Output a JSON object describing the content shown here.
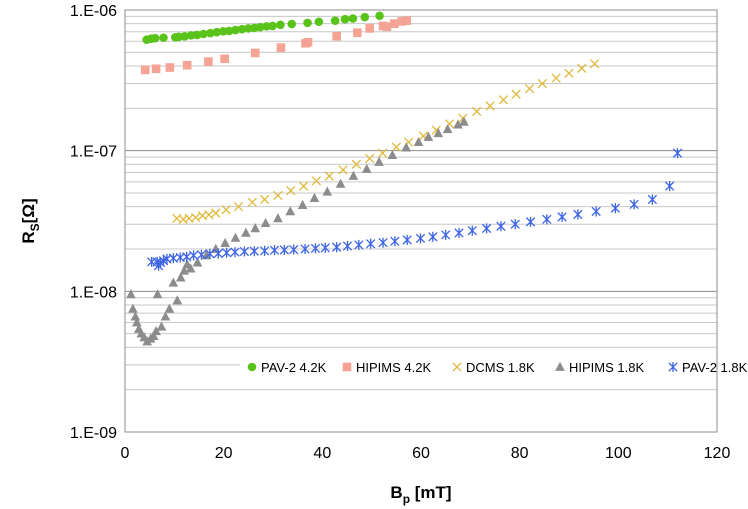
{
  "chart_data": {
    "type": "scatter",
    "xlabel": {
      "main": "B",
      "sub": "p",
      "unit": " [mT]"
    },
    "ylabel": {
      "main": "R",
      "sub": "S",
      "unit": "[Ω]"
    },
    "xlim": [
      0,
      120
    ],
    "ylim": [
      1e-09,
      1e-06
    ],
    "y_scale": "log",
    "x_ticks": [
      "0",
      "20",
      "40",
      "60",
      "80",
      "100",
      "120"
    ],
    "y_ticks": [
      "1.E-09",
      "1.E-08",
      "1.E-07",
      "1.E-06"
    ],
    "grid": "horizontal minor + major",
    "legend_position": "bottom-right",
    "series": [
      {
        "name": "PAV-2 4.2K",
        "marker": "circle",
        "color": "#5ac31a",
        "points": [
          [
            4.4,
            6.15e-07
          ],
          [
            5.3,
            6.25e-07
          ],
          [
            6.1,
            6.3e-07
          ],
          [
            7.8,
            6.35e-07
          ],
          [
            10.2,
            6.4e-07
          ],
          [
            10.9,
            6.45e-07
          ],
          [
            12.1,
            6.5e-07
          ],
          [
            13.4,
            6.6e-07
          ],
          [
            14.6,
            6.65e-07
          ],
          [
            15.9,
            6.75e-07
          ],
          [
            17.3,
            6.85e-07
          ],
          [
            18.6,
            6.95e-07
          ],
          [
            19.9,
            7.05e-07
          ],
          [
            21.1,
            7.1e-07
          ],
          [
            22.4,
            7.2e-07
          ],
          [
            23.7,
            7.3e-07
          ],
          [
            25.0,
            7.4e-07
          ],
          [
            26.2,
            7.45e-07
          ],
          [
            27.4,
            7.55e-07
          ],
          [
            28.7,
            7.65e-07
          ],
          [
            29.9,
            7.7e-07
          ],
          [
            31.5,
            7.85e-07
          ],
          [
            33.8,
            7.95e-07
          ],
          [
            37.0,
            8.1e-07
          ],
          [
            39.3,
            8.25e-07
          ],
          [
            42.6,
            8.4e-07
          ],
          [
            44.6,
            8.6e-07
          ],
          [
            46.2,
            8.7e-07
          ],
          [
            48.6,
            8.9e-07
          ],
          [
            51.6,
            9.1e-07
          ]
        ]
      },
      {
        "name": "HIPIMS 4.2K",
        "marker": "square",
        "color": "#f4a394",
        "points": [
          [
            4.1,
            3.75e-07
          ],
          [
            6.3,
            3.82e-07
          ],
          [
            9.1,
            3.9e-07
          ],
          [
            12.6,
            4.05e-07
          ],
          [
            16.9,
            4.3e-07
          ],
          [
            20.2,
            4.5e-07
          ],
          [
            26.4,
            4.95e-07
          ],
          [
            31.6,
            5.4e-07
          ],
          [
            36.6,
            5.8e-07
          ],
          [
            37.1,
            5.9e-07
          ],
          [
            42.9,
            6.5e-07
          ],
          [
            47.1,
            6.9e-07
          ],
          [
            49.6,
            7.4e-07
          ],
          [
            52.3,
            7.7e-07
          ],
          [
            53.1,
            7.6e-07
          ],
          [
            54.6,
            8e-07
          ],
          [
            56.1,
            8.3e-07
          ],
          [
            57.1,
            8.4e-07
          ]
        ]
      },
      {
        "name": "DCMS 1.8K",
        "marker": "x",
        "color": "#e0b93a",
        "points": [
          [
            10.5,
            3.3e-08
          ],
          [
            11.8,
            3.25e-08
          ],
          [
            13.0,
            3.3e-08
          ],
          [
            14.3,
            3.35e-08
          ],
          [
            15.7,
            3.45e-08
          ],
          [
            17.0,
            3.5e-08
          ],
          [
            18.4,
            3.6e-08
          ],
          [
            20.5,
            3.8e-08
          ],
          [
            23.0,
            4e-08
          ],
          [
            25.8,
            4.3e-08
          ],
          [
            28.3,
            4.5e-08
          ],
          [
            31.0,
            4.8e-08
          ],
          [
            33.6,
            5.2e-08
          ],
          [
            36.2,
            5.6e-08
          ],
          [
            38.8,
            6.1e-08
          ],
          [
            41.4,
            6.6e-08
          ],
          [
            44.2,
            7.3e-08
          ],
          [
            46.9,
            8e-08
          ],
          [
            49.6,
            8.8e-08
          ],
          [
            52.2,
            9.6e-08
          ],
          [
            55.0,
            1.06e-07
          ],
          [
            57.5,
            1.15e-07
          ],
          [
            60.5,
            1.27e-07
          ],
          [
            63.1,
            1.4e-07
          ],
          [
            65.8,
            1.55e-07
          ],
          [
            68.5,
            1.7e-07
          ],
          [
            71.3,
            1.9e-07
          ],
          [
            74.0,
            2.08e-07
          ],
          [
            76.7,
            2.3e-07
          ],
          [
            79.3,
            2.52e-07
          ],
          [
            82.0,
            2.76e-07
          ],
          [
            84.6,
            3e-07
          ],
          [
            87.4,
            3.28e-07
          ],
          [
            90.0,
            3.55e-07
          ],
          [
            92.6,
            3.85e-07
          ],
          [
            95.2,
            4.15e-07
          ]
        ]
      },
      {
        "name": "HIPIMS 1.8K",
        "marker": "triangle",
        "color": "#8c8c8c",
        "points": [
          [
            1.2,
            9.5e-09
          ],
          [
            1.6,
            7.5e-09
          ],
          [
            2.1,
            6.6e-09
          ],
          [
            2.4,
            6e-09
          ],
          [
            2.8,
            5.4e-09
          ],
          [
            3.3,
            5e-09
          ],
          [
            3.9,
            4.7e-09
          ],
          [
            4.5,
            4.4e-09
          ],
          [
            5.2,
            4.6e-09
          ],
          [
            5.8,
            4.8e-09
          ],
          [
            6.3,
            5.2e-09
          ],
          [
            6.6,
            9.5e-09
          ],
          [
            7.4,
            5.6e-09
          ],
          [
            8.2,
            6.6e-09
          ],
          [
            9.0,
            7.5e-09
          ],
          [
            9.8,
            1.15e-08
          ],
          [
            10.6,
            8.6e-09
          ],
          [
            11.3,
            1.25e-08
          ],
          [
            12.0,
            1.4e-08
          ],
          [
            12.6,
            1.55e-08
          ],
          [
            13.3,
            1.45e-08
          ],
          [
            14.7,
            1.6e-08
          ],
          [
            16.5,
            1.8e-08
          ],
          [
            18.4,
            2e-08
          ],
          [
            20.3,
            2.2e-08
          ],
          [
            22.4,
            2.4e-08
          ],
          [
            24.5,
            2.6e-08
          ],
          [
            26.4,
            2.8e-08
          ],
          [
            28.5,
            3.05e-08
          ],
          [
            31.0,
            3.3e-08
          ],
          [
            33.5,
            3.7e-08
          ],
          [
            36.0,
            4.1e-08
          ],
          [
            38.4,
            4.6e-08
          ],
          [
            41.0,
            5.1e-08
          ],
          [
            43.7,
            5.8e-08
          ],
          [
            46.3,
            6.6e-08
          ],
          [
            49.0,
            7.4e-08
          ],
          [
            51.5,
            8.3e-08
          ],
          [
            54.2,
            9.3e-08
          ],
          [
            57.0,
            1.05e-07
          ],
          [
            59.5,
            1.15e-07
          ],
          [
            61.5,
            1.25e-07
          ],
          [
            63.5,
            1.33e-07
          ],
          [
            65.4,
            1.42e-07
          ],
          [
            67.5,
            1.53e-07
          ],
          [
            68.7,
            1.6e-07
          ]
        ]
      },
      {
        "name": "PAV-2 1.8K",
        "marker": "asterisk",
        "color": "#3c64e6",
        "points": [
          [
            5.4,
            1.62e-08
          ],
          [
            6.5,
            1.62e-08
          ],
          [
            6.8,
            1.52e-08
          ],
          [
            7.2,
            1.6e-08
          ],
          [
            7.8,
            1.65e-08
          ],
          [
            8.5,
            1.7e-08
          ],
          [
            9.8,
            1.72e-08
          ],
          [
            11.2,
            1.74e-08
          ],
          [
            12.5,
            1.76e-08
          ],
          [
            13.9,
            1.8e-08
          ],
          [
            15.5,
            1.82e-08
          ],
          [
            17.2,
            1.85e-08
          ],
          [
            18.9,
            1.86e-08
          ],
          [
            20.6,
            1.88e-08
          ],
          [
            22.3,
            1.9e-08
          ],
          [
            24.2,
            1.92e-08
          ],
          [
            26.2,
            1.93e-08
          ],
          [
            28.3,
            1.94e-08
          ],
          [
            30.3,
            1.96e-08
          ],
          [
            32.3,
            1.97e-08
          ],
          [
            34.2,
            1.98e-08
          ],
          [
            36.5,
            2e-08
          ],
          [
            38.6,
            2.02e-08
          ],
          [
            40.6,
            2.04e-08
          ],
          [
            42.9,
            2.06e-08
          ],
          [
            45.1,
            2.1e-08
          ],
          [
            47.4,
            2.14e-08
          ],
          [
            49.8,
            2.18e-08
          ],
          [
            52.3,
            2.22e-08
          ],
          [
            54.7,
            2.27e-08
          ],
          [
            57.2,
            2.32e-08
          ],
          [
            59.9,
            2.38e-08
          ],
          [
            62.4,
            2.44e-08
          ],
          [
            65.0,
            2.52e-08
          ],
          [
            67.7,
            2.6e-08
          ],
          [
            70.4,
            2.7e-08
          ],
          [
            73.3,
            2.8e-08
          ],
          [
            76.2,
            2.9e-08
          ],
          [
            79.1,
            3e-08
          ],
          [
            82.2,
            3.12e-08
          ],
          [
            85.5,
            3.25e-08
          ],
          [
            88.6,
            3.38e-08
          ],
          [
            91.8,
            3.52e-08
          ],
          [
            95.5,
            3.7e-08
          ],
          [
            99.4,
            3.9e-08
          ],
          [
            103.2,
            4.15e-08
          ],
          [
            106.9,
            4.5e-08
          ],
          [
            110.4,
            5.6e-08
          ],
          [
            112.0,
            9.6e-08
          ]
        ]
      }
    ]
  }
}
